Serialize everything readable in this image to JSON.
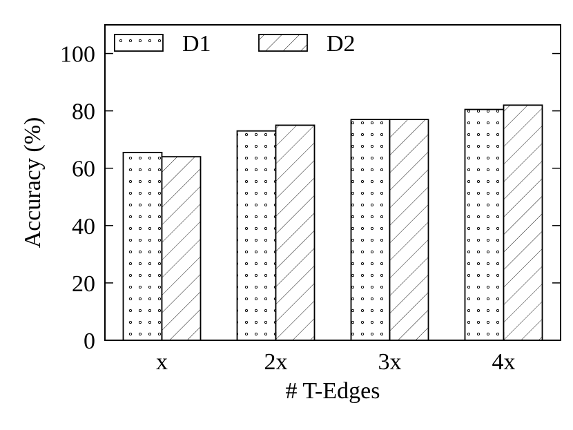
{
  "chart_data": {
    "type": "bar",
    "categories": [
      "x",
      "2x",
      "3x",
      "4x"
    ],
    "series": [
      {
        "name": "D1",
        "values": [
          65.5,
          73,
          77,
          80.5
        ],
        "pattern": "dots"
      },
      {
        "name": "D2",
        "values": [
          64,
          75,
          77,
          82
        ],
        "pattern": "hatch"
      }
    ],
    "xlabel": "# T-Edges",
    "ylabel": "Accuracy (%)",
    "ylim": [
      0,
      110
    ],
    "yticks": [
      0,
      20,
      40,
      60,
      80,
      100
    ],
    "legend_position": "top-left, horizontal",
    "grid": false,
    "colors": {
      "bar_fill": "#ffffff",
      "bar_stroke": "#000000",
      "pattern": "#000000"
    }
  }
}
